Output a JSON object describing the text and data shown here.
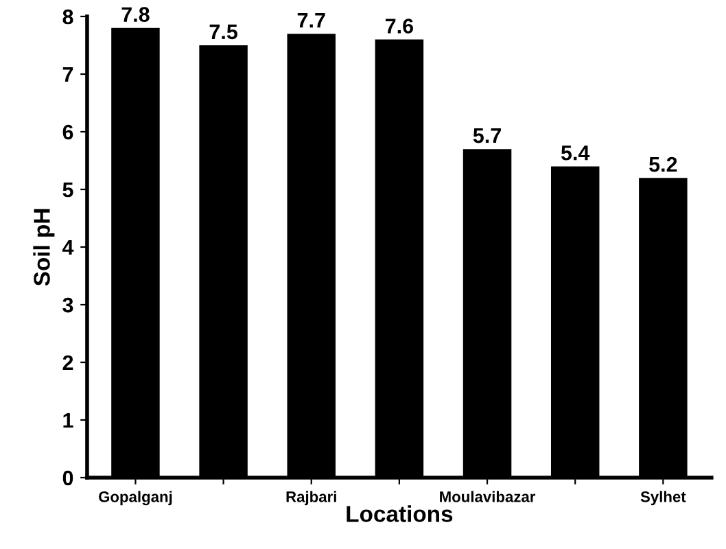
{
  "chart_data": {
    "type": "bar",
    "xlabel": "Locations",
    "ylabel": "Soil pH",
    "categories": [
      "Gopalganj",
      null,
      "Rajbari",
      null,
      "Moulavibazar",
      null,
      "Sylhet"
    ],
    "values": [
      7.8,
      7.5,
      7.7,
      7.6,
      5.7,
      5.4,
      5.2
    ],
    "color": "#000000",
    "ylim": [
      0,
      8
    ],
    "yticks": [
      0,
      1,
      2,
      3,
      4,
      5,
      6,
      7,
      8
    ],
    "grid": false,
    "data_labels": true,
    "legend": false
  }
}
